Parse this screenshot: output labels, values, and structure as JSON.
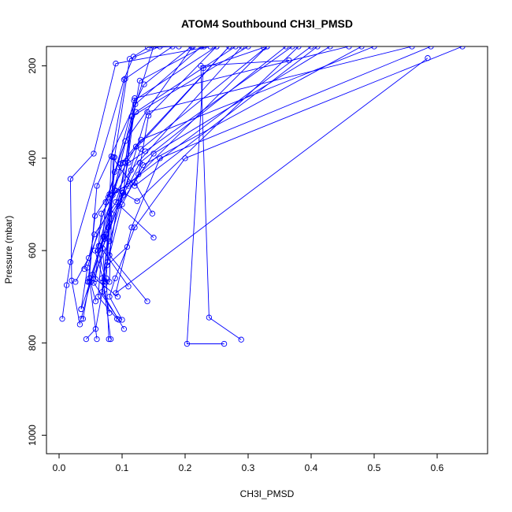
{
  "chart_data": {
    "type": "line",
    "title": "ATOM4 Southbound CH3I_PMSD",
    "xlabel": "CH3I_PMSD",
    "ylabel": "Pressure (mbar)",
    "xlim": [
      -0.02,
      0.68
    ],
    "ylim": [
      1040,
      158
    ],
    "y_reversed": true,
    "xticks": [
      0.0,
      0.1,
      0.2,
      0.3,
      0.4,
      0.5,
      0.6
    ],
    "xtick_labels": [
      "0.0",
      "0.1",
      "0.2",
      "0.3",
      "0.4",
      "0.5",
      "0.6"
    ],
    "yticks": [
      200,
      400,
      600,
      800,
      1000
    ],
    "ytick_labels": [
      "200",
      "400",
      "600",
      "800",
      "1000"
    ],
    "grid": false,
    "legend": "none",
    "color": "#0000ff",
    "marker": "open-circle",
    "profiles": [
      {
        "x": [
          0.289,
          0.238,
          0.225,
          0.365
        ],
        "y": [
          793,
          745,
          200,
          188
        ]
      },
      {
        "x": [
          0.262,
          0.203,
          0.229,
          0.325
        ],
        "y": [
          802,
          802,
          205,
          160
        ]
      },
      {
        "x": [
          0.005,
          0.012,
          0.018,
          0.103,
          0.118,
          0.141,
          0.19
        ],
        "y": [
          748,
          675,
          625,
          230,
          180,
          160,
          158
        ]
      },
      {
        "x": [
          0.033,
          0.02,
          0.018,
          0.055,
          0.09,
          0.24
        ],
        "y": [
          760,
          665,
          445,
          390,
          195,
          158
        ]
      },
      {
        "x": [
          0.043,
          0.058,
          0.105,
          0.116,
          0.15
        ],
        "y": [
          792,
          770,
          410,
          308,
          158
        ]
      },
      {
        "x": [
          0.06,
          0.048,
          0.06,
          0.135,
          0.21
        ],
        "y": [
          792,
          660,
          460,
          240,
          158
        ]
      },
      {
        "x": [
          0.082,
          0.07,
          0.085,
          0.4
        ],
        "y": [
          792,
          668,
          480,
          158
        ]
      },
      {
        "x": [
          0.079,
          0.075,
          0.083,
          0.105,
          0.18
        ],
        "y": [
          792,
          660,
          396,
          228,
          158
        ]
      },
      {
        "x": [
          0.092,
          0.062,
          0.074,
          0.105,
          0.212
        ],
        "y": [
          748,
          700,
          495,
          363,
          158
        ]
      },
      {
        "x": [
          0.095,
          0.055,
          0.078,
          0.13,
          0.33
        ],
        "y": [
          750,
          670,
          550,
          380,
          158
        ]
      },
      {
        "x": [
          0.103,
          0.068,
          0.088,
          0.122,
          0.28
        ],
        "y": [
          770,
          690,
          430,
          300,
          158
        ]
      },
      {
        "x": [
          0.035,
          0.045,
          0.078,
          0.12,
          0.46
        ],
        "y": [
          727,
          637,
          485,
          270,
          158
        ]
      },
      {
        "x": [
          0.038,
          0.048,
          0.07,
          0.115,
          0.3
        ],
        "y": [
          748,
          668,
          570,
          310,
          158
        ]
      },
      {
        "x": [
          0.035,
          0.05,
          0.08,
          0.14,
          0.56
        ],
        "y": [
          748,
          668,
          580,
          300,
          158
        ]
      },
      {
        "x": [
          0.14,
          0.08,
          0.1,
          0.133,
          0.48
        ],
        "y": [
          710,
          610,
          500,
          415,
          158
        ]
      },
      {
        "x": [
          0.15,
          0.09,
          0.11,
          0.137,
          0.37
        ],
        "y": [
          572,
          495,
          410,
          385,
          158
        ]
      },
      {
        "x": [
          0.148,
          0.12,
          0.126,
          0.142,
          0.25
        ],
        "y": [
          520,
          452,
          435,
          308,
          158
        ]
      },
      {
        "x": [
          0.585,
          0.09,
          0.115,
          0.16,
          0.59
        ],
        "y": [
          183,
          692,
          550,
          400,
          158
        ]
      },
      {
        "x": [
          0.026,
          0.047,
          0.056,
          0.101,
          0.124,
          0.38
        ],
        "y": [
          668,
          616,
          565,
          474,
          493,
          158
        ]
      },
      {
        "x": [
          0.075,
          0.062,
          0.072,
          0.102,
          0.119,
          0.25
        ],
        "y": [
          668,
          600,
          575,
          480,
          275,
          158
        ]
      },
      {
        "x": [
          0.058,
          0.05,
          0.072,
          0.088,
          0.101,
          0.27
        ],
        "y": [
          710,
          668,
          570,
          470,
          410,
          158
        ]
      },
      {
        "x": [
          0.08,
          0.072,
          0.068,
          0.077,
          0.128,
          0.23
        ],
        "y": [
          735,
          685,
          660,
          625,
          232,
          158
        ]
      },
      {
        "x": [
          0.11,
          0.065,
          0.075,
          0.095,
          0.15,
          0.43
        ],
        "y": [
          678,
          590,
          565,
          503,
          390,
          158
        ]
      },
      {
        "x": [
          0.072,
          0.057,
          0.063,
          0.098,
          0.13,
          0.5
        ],
        "y": [
          672,
          600,
          590,
          412,
          360,
          158
        ]
      },
      {
        "x": [
          0.1,
          0.08,
          0.089,
          0.12,
          0.2,
          0.64
        ],
        "y": [
          750,
          700,
          660,
          550,
          400,
          158
        ]
      },
      {
        "x": [
          0.04,
          0.09,
          0.11,
          0.128,
          0.36
        ],
        "y": [
          640,
          470,
          460,
          410,
          158
        ]
      },
      {
        "x": [
          0.035,
          0.053,
          0.083,
          0.112,
          0.33
        ],
        "y": [
          727,
          652,
          520,
          455,
          158
        ]
      },
      {
        "x": [
          0.093,
          0.058,
          0.067,
          0.114,
          0.29
        ],
        "y": [
          700,
          662,
          520,
          426,
          158
        ]
      },
      {
        "x": [
          0.08,
          0.086,
          0.095,
          0.12,
          0.41
        ],
        "y": [
          668,
          398,
          420,
          460,
          158
        ]
      },
      {
        "x": [
          0.073,
          0.069,
          0.102,
          0.121,
          0.226
        ],
        "y": [
          668,
          595,
          475,
          283,
          158
        ]
      },
      {
        "x": [
          0.108,
          0.076,
          0.088,
          0.112,
          0.16
        ],
        "y": [
          592,
          632,
          398,
          185,
          158
        ]
      },
      {
        "x": [
          0.046,
          0.057,
          0.08,
          0.122,
          0.27
        ],
        "y": [
          668,
          525,
          478,
          375,
          158
        ]
      }
    ]
  }
}
